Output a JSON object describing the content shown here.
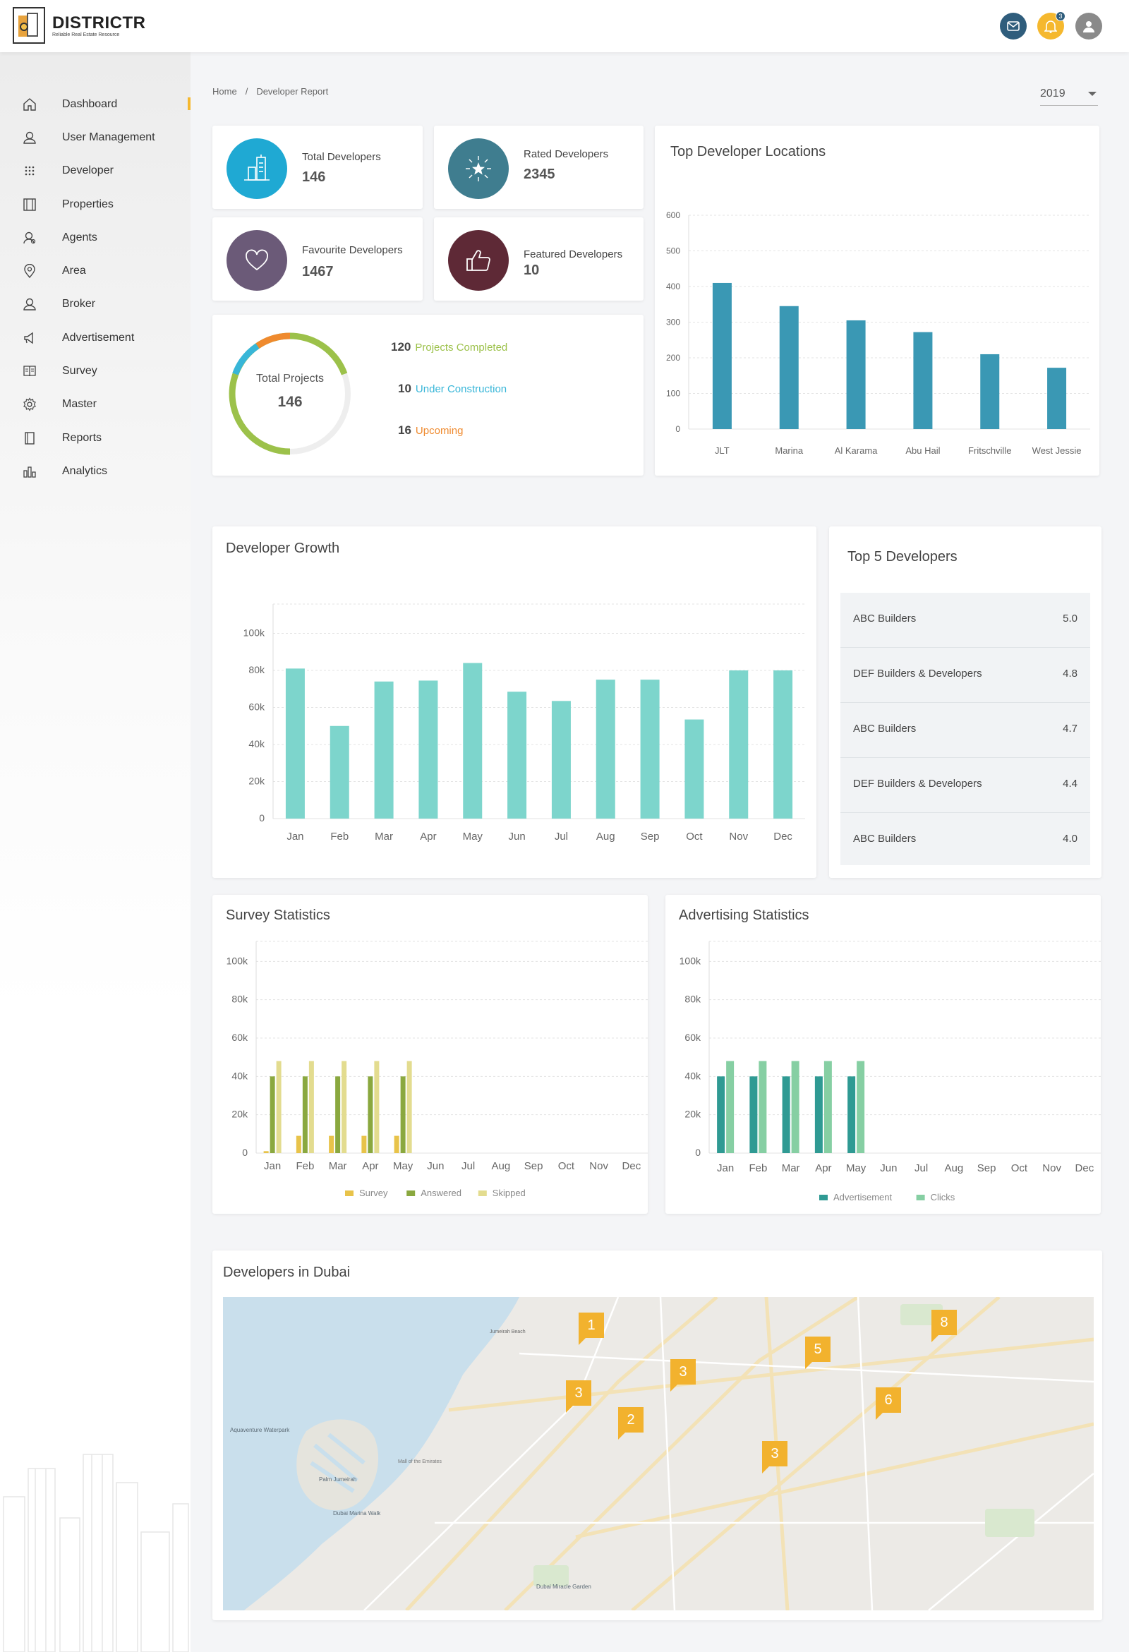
{
  "brand": {
    "name": "DISTRICTR",
    "tagline": "Reliable Real Estate Resource"
  },
  "header": {
    "notification_count": "3"
  },
  "sidebar": {
    "items": [
      {
        "label": "Dashboard",
        "icon": "home-icon"
      },
      {
        "label": "User Management",
        "icon": "user-icon"
      },
      {
        "label": "Developer",
        "icon": "grid-dots-icon"
      },
      {
        "label": "Properties",
        "icon": "film-strip-icon"
      },
      {
        "label": "Agents",
        "icon": "agent-icon"
      },
      {
        "label": "Area",
        "icon": "location-pin-icon"
      },
      {
        "label": "Broker",
        "icon": "broker-icon"
      },
      {
        "label": "Advertisement",
        "icon": "megaphone-icon"
      },
      {
        "label": "Survey",
        "icon": "book-icon"
      },
      {
        "label": "Master",
        "icon": "gear-icon"
      },
      {
        "label": "Reports",
        "icon": "report-icon"
      },
      {
        "label": "Analytics",
        "icon": "bar-chart-icon"
      }
    ]
  },
  "breadcrumb": {
    "home": "Home",
    "current": "Developer Report"
  },
  "year_select": {
    "value": "2019"
  },
  "stats": {
    "total": {
      "label": "Total Developers",
      "value": "146",
      "color": "#1fa9d3"
    },
    "rated": {
      "label": "Rated Developers",
      "value": "2345",
      "color": "#3f7d8f"
    },
    "favourite": {
      "label": "Favourite Developers",
      "value": "1467",
      "color": "#6b5a78"
    },
    "featured": {
      "label": "Featured Developers",
      "value": "10",
      "color": "#5e2936"
    }
  },
  "projects": {
    "center_label": "Total Projects",
    "center_value": "146",
    "rows": [
      {
        "count": "120",
        "label": "Projects Completed",
        "color": "#9cc14a"
      },
      {
        "count": "10",
        "label": "Under Construction",
        "color": "#38b6d8"
      },
      {
        "count": "16",
        "label": "Upcoming",
        "color": "#ef8a2e"
      }
    ]
  },
  "top_locations_title": "Top Developer Locations",
  "developer_growth_title": "Developer Growth",
  "top5": {
    "title": "Top 5 Developers",
    "rows": [
      {
        "name": "ABC Builders",
        "rating": "5.0"
      },
      {
        "name": "DEF Builders & Developers",
        "rating": "4.8"
      },
      {
        "name": "ABC Builders",
        "rating": "4.7"
      },
      {
        "name": "DEF Builders & Developers",
        "rating": "4.4"
      },
      {
        "name": "ABC Builders",
        "rating": "4.0"
      }
    ]
  },
  "survey_title": "Survey Statistics",
  "advertising_title": "Advertising Statistics",
  "map": {
    "title": "Developers in Dubai",
    "pins": [
      "1",
      "8",
      "5",
      "3",
      "3",
      "6",
      "2",
      "3"
    ],
    "place_labels": [
      "Jumeirah Beach",
      "Aquaventure Waterpark",
      "Palm Jumeirah",
      "Dubai Marina Walk",
      "Mall of the Emirates",
      "Dubai Miracle Garden"
    ]
  },
  "chart_data": [
    {
      "type": "bar",
      "title": "Top Developer Locations",
      "categories": [
        "JLT",
        "Marina",
        "Al Karama",
        "Abu Hail",
        "Fritschville",
        "West Jessie"
      ],
      "values": [
        410,
        345,
        305,
        272,
        210,
        172
      ],
      "ylim": [
        0,
        600
      ],
      "yticks": [
        "0",
        "100",
        "200",
        "300",
        "400",
        "500",
        "600"
      ],
      "color": "#3a98b4"
    },
    {
      "type": "bar",
      "title": "Developer Growth",
      "categories": [
        "Jan",
        "Feb",
        "Mar",
        "Apr",
        "May",
        "Jun",
        "Jul",
        "Aug",
        "Sep",
        "Oct",
        "Nov",
        "Dec"
      ],
      "values": [
        81000,
        50000,
        74000,
        74500,
        84000,
        68500,
        63500,
        75000,
        75000,
        53500,
        80000,
        80000
      ],
      "ylim": [
        0,
        120000
      ],
      "yticks": [
        "0",
        "20k",
        "40k",
        "60k",
        "80k",
        "100k"
      ],
      "color": "#7dd5cc"
    },
    {
      "type": "bar",
      "title": "Survey Statistics",
      "categories": [
        "Jan",
        "Feb",
        "Mar",
        "Apr",
        "May",
        "Jun",
        "Jul",
        "Aug",
        "Sep",
        "Oct",
        "Nov",
        "Dec"
      ],
      "series": [
        {
          "name": "Survey",
          "color": "#e8c34a",
          "values": [
            1000,
            9000,
            9000,
            9000,
            9000,
            0,
            0,
            0,
            0,
            0,
            0,
            0
          ]
        },
        {
          "name": "Answered",
          "color": "#8aa83f",
          "values": [
            40000,
            40000,
            40000,
            40000,
            40000,
            0,
            0,
            0,
            0,
            0,
            0,
            0
          ]
        },
        {
          "name": "Skipped",
          "color": "#e3dc8f",
          "values": [
            48000,
            48000,
            48000,
            48000,
            48000,
            0,
            0,
            0,
            0,
            0,
            0,
            0
          ]
        }
      ],
      "ylim": [
        0,
        120000
      ],
      "yticks": [
        "0",
        "20k",
        "40k",
        "60k",
        "80k",
        "100k"
      ]
    },
    {
      "type": "bar",
      "title": "Advertising Statistics",
      "categories": [
        "Jan",
        "Feb",
        "Mar",
        "Apr",
        "May",
        "Jun",
        "Jul",
        "Aug",
        "Sep",
        "Oct",
        "Nov",
        "Dec"
      ],
      "series": [
        {
          "name": "Advertisement",
          "color": "#2f9a93",
          "values": [
            40000,
            40000,
            40000,
            40000,
            40000,
            0,
            0,
            0,
            0,
            0,
            0,
            0
          ]
        },
        {
          "name": "Clicks",
          "color": "#86cfa3",
          "values": [
            48000,
            48000,
            48000,
            48000,
            48000,
            0,
            0,
            0,
            0,
            0,
            0,
            0
          ]
        }
      ],
      "ylim": [
        0,
        120000
      ],
      "yticks": [
        "0",
        "20k",
        "40k",
        "60k",
        "80k",
        "100k"
      ]
    }
  ]
}
